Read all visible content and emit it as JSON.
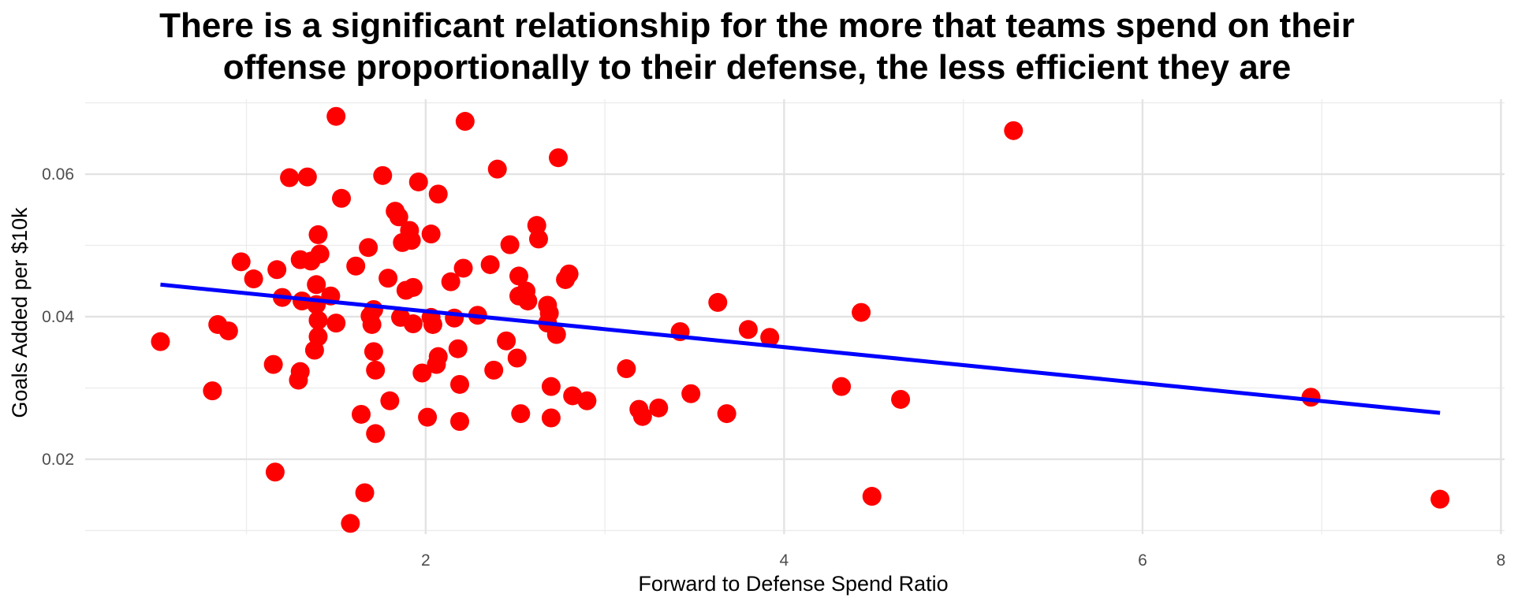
{
  "chart_data": {
    "type": "scatter",
    "title_lines": [
      "There is a significant relationship for the more that teams spend on their",
      "offense proportionally to their defense, the less efficient they are"
    ],
    "xlabel": "Forward to Defense Spend Ratio",
    "ylabel": "Goals Added per $10k",
    "xlim": [
      0.1,
      8.02
    ],
    "ylim": [
      0.0095,
      0.0705
    ],
    "x_ticks": [
      2,
      4,
      6,
      8
    ],
    "x_tick_labels": [
      "2",
      "4",
      "6",
      "8"
    ],
    "y_ticks": [
      0.02,
      0.04,
      0.06
    ],
    "y_tick_labels": [
      "0.02",
      "0.04",
      "0.06"
    ],
    "grid": true,
    "point_color": "#ff0000",
    "line_color": "#0000ff",
    "trend_line": {
      "x": [
        0.52,
        7.66
      ],
      "y": [
        0.0445,
        0.0265
      ]
    },
    "points": [
      {
        "x": 0.52,
        "y": 0.0365
      },
      {
        "x": 0.81,
        "y": 0.0296
      },
      {
        "x": 0.84,
        "y": 0.0389
      },
      {
        "x": 0.9,
        "y": 0.038
      },
      {
        "x": 0.97,
        "y": 0.0477
      },
      {
        "x": 1.04,
        "y": 0.0453
      },
      {
        "x": 1.15,
        "y": 0.0333
      },
      {
        "x": 1.16,
        "y": 0.0182
      },
      {
        "x": 1.17,
        "y": 0.0466
      },
      {
        "x": 1.2,
        "y": 0.0427
      },
      {
        "x": 1.24,
        "y": 0.0595
      },
      {
        "x": 1.29,
        "y": 0.0311
      },
      {
        "x": 1.3,
        "y": 0.0323
      },
      {
        "x": 1.3,
        "y": 0.048
      },
      {
        "x": 1.31,
        "y": 0.0422
      },
      {
        "x": 1.34,
        "y": 0.0596
      },
      {
        "x": 1.36,
        "y": 0.0478
      },
      {
        "x": 1.38,
        "y": 0.0353
      },
      {
        "x": 1.39,
        "y": 0.0417
      },
      {
        "x": 1.39,
        "y": 0.0445
      },
      {
        "x": 1.4,
        "y": 0.0395
      },
      {
        "x": 1.4,
        "y": 0.0372
      },
      {
        "x": 1.4,
        "y": 0.0515
      },
      {
        "x": 1.41,
        "y": 0.0488
      },
      {
        "x": 1.47,
        "y": 0.0429
      },
      {
        "x": 1.5,
        "y": 0.0391
      },
      {
        "x": 1.5,
        "y": 0.0681
      },
      {
        "x": 1.53,
        "y": 0.0566
      },
      {
        "x": 1.58,
        "y": 0.011
      },
      {
        "x": 1.61,
        "y": 0.0471
      },
      {
        "x": 1.64,
        "y": 0.0263
      },
      {
        "x": 1.66,
        "y": 0.0153
      },
      {
        "x": 1.68,
        "y": 0.0497
      },
      {
        "x": 1.69,
        "y": 0.0401
      },
      {
        "x": 1.7,
        "y": 0.0389
      },
      {
        "x": 1.71,
        "y": 0.041
      },
      {
        "x": 1.71,
        "y": 0.0351
      },
      {
        "x": 1.72,
        "y": 0.0325
      },
      {
        "x": 1.72,
        "y": 0.0236
      },
      {
        "x": 1.76,
        "y": 0.0598
      },
      {
        "x": 1.79,
        "y": 0.0454
      },
      {
        "x": 1.8,
        "y": 0.0282
      },
      {
        "x": 1.83,
        "y": 0.0548
      },
      {
        "x": 1.85,
        "y": 0.054
      },
      {
        "x": 1.86,
        "y": 0.0399
      },
      {
        "x": 1.87,
        "y": 0.0504
      },
      {
        "x": 1.89,
        "y": 0.0437
      },
      {
        "x": 1.91,
        "y": 0.0521
      },
      {
        "x": 1.92,
        "y": 0.0507
      },
      {
        "x": 1.93,
        "y": 0.039
      },
      {
        "x": 1.93,
        "y": 0.0441
      },
      {
        "x": 1.96,
        "y": 0.0589
      },
      {
        "x": 1.98,
        "y": 0.0321
      },
      {
        "x": 2.01,
        "y": 0.0259
      },
      {
        "x": 2.03,
        "y": 0.0399
      },
      {
        "x": 2.03,
        "y": 0.0516
      },
      {
        "x": 2.04,
        "y": 0.0389
      },
      {
        "x": 2.06,
        "y": 0.0333
      },
      {
        "x": 2.07,
        "y": 0.0344
      },
      {
        "x": 2.07,
        "y": 0.0572
      },
      {
        "x": 2.14,
        "y": 0.0449
      },
      {
        "x": 2.16,
        "y": 0.0398
      },
      {
        "x": 2.18,
        "y": 0.0355
      },
      {
        "x": 2.19,
        "y": 0.0305
      },
      {
        "x": 2.19,
        "y": 0.0253
      },
      {
        "x": 2.21,
        "y": 0.0468
      },
      {
        "x": 2.22,
        "y": 0.0674
      },
      {
        "x": 2.29,
        "y": 0.0402
      },
      {
        "x": 2.36,
        "y": 0.0473
      },
      {
        "x": 2.38,
        "y": 0.0325
      },
      {
        "x": 2.4,
        "y": 0.0607
      },
      {
        "x": 2.45,
        "y": 0.0366
      },
      {
        "x": 2.47,
        "y": 0.0501
      },
      {
        "x": 2.51,
        "y": 0.0342
      },
      {
        "x": 2.52,
        "y": 0.0457
      },
      {
        "x": 2.52,
        "y": 0.0429
      },
      {
        "x": 2.53,
        "y": 0.0264
      },
      {
        "x": 2.56,
        "y": 0.0436
      },
      {
        "x": 2.57,
        "y": 0.0422
      },
      {
        "x": 2.62,
        "y": 0.0528
      },
      {
        "x": 2.63,
        "y": 0.0509
      },
      {
        "x": 2.68,
        "y": 0.0416
      },
      {
        "x": 2.68,
        "y": 0.0391
      },
      {
        "x": 2.69,
        "y": 0.0405
      },
      {
        "x": 2.7,
        "y": 0.0302
      },
      {
        "x": 2.7,
        "y": 0.0258
      },
      {
        "x": 2.73,
        "y": 0.0375
      },
      {
        "x": 2.74,
        "y": 0.0623
      },
      {
        "x": 2.78,
        "y": 0.0452
      },
      {
        "x": 2.8,
        "y": 0.046
      },
      {
        "x": 2.82,
        "y": 0.0289
      },
      {
        "x": 2.9,
        "y": 0.0282
      },
      {
        "x": 3.12,
        "y": 0.0327
      },
      {
        "x": 3.19,
        "y": 0.027
      },
      {
        "x": 3.21,
        "y": 0.026
      },
      {
        "x": 3.3,
        "y": 0.0272
      },
      {
        "x": 3.42,
        "y": 0.0379
      },
      {
        "x": 3.48,
        "y": 0.0292
      },
      {
        "x": 3.63,
        "y": 0.042
      },
      {
        "x": 3.68,
        "y": 0.0264
      },
      {
        "x": 3.8,
        "y": 0.0382
      },
      {
        "x": 3.92,
        "y": 0.0371
      },
      {
        "x": 4.32,
        "y": 0.0302
      },
      {
        "x": 4.43,
        "y": 0.0406
      },
      {
        "x": 4.49,
        "y": 0.0148
      },
      {
        "x": 4.65,
        "y": 0.0284
      },
      {
        "x": 5.28,
        "y": 0.0661
      },
      {
        "x": 6.94,
        "y": 0.0287
      },
      {
        "x": 7.66,
        "y": 0.0144
      }
    ]
  }
}
